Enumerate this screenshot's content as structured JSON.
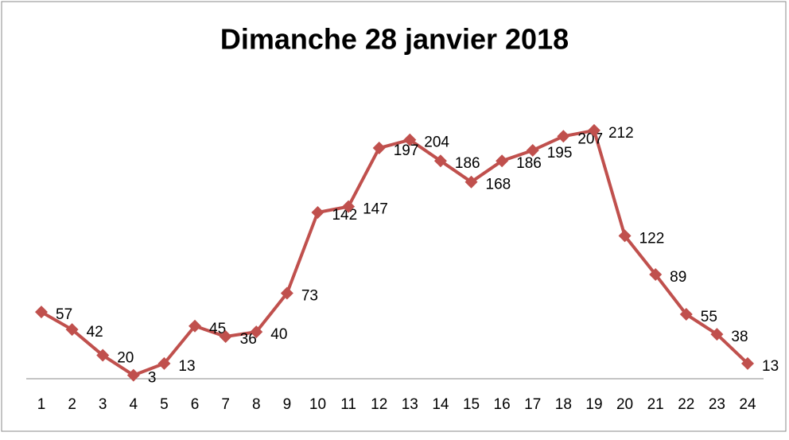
{
  "chart_data": {
    "type": "line",
    "title": "Dimanche 28 janvier 2018",
    "categories": [
      1,
      2,
      3,
      4,
      5,
      6,
      7,
      8,
      9,
      10,
      11,
      12,
      13,
      14,
      15,
      16,
      17,
      18,
      19,
      20,
      21,
      22,
      23,
      24
    ],
    "series": [
      {
        "name": "Dimanche 28 janvier 2018",
        "color": "#c0504d",
        "values": [
          57,
          42,
          20,
          3,
          13,
          45,
          36,
          40,
          73,
          142,
          147,
          197,
          204,
          186,
          168,
          186,
          195,
          207,
          212,
          122,
          89,
          55,
          38,
          13
        ]
      }
    ],
    "ylim": [
      0,
      250
    ]
  }
}
